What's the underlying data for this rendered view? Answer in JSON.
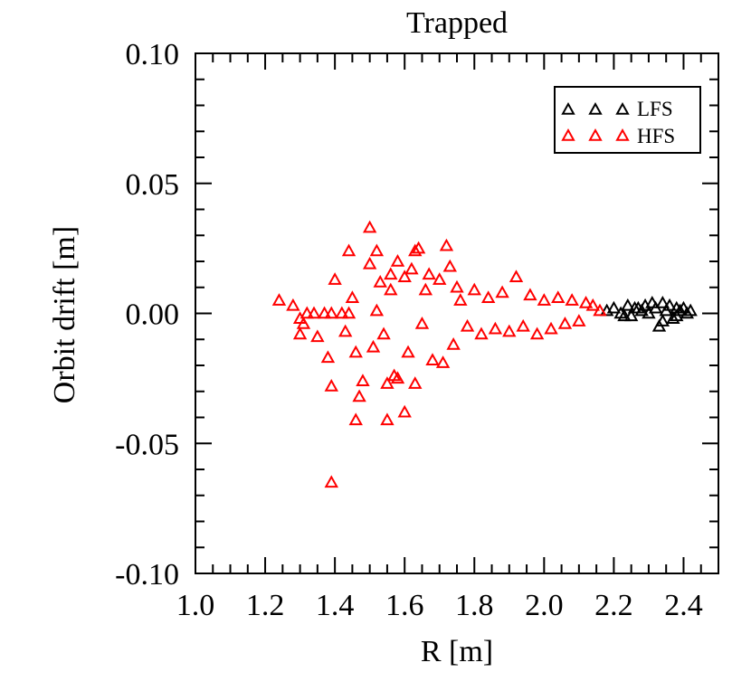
{
  "chart_data": {
    "type": "scatter",
    "title": "Trapped",
    "xlabel": "R [m]",
    "ylabel": "Orbit drift [m]",
    "xlim": [
      1.0,
      2.5
    ],
    "ylim": [
      -0.1,
      0.1
    ],
    "xticks": [
      "1.0",
      "1.2",
      "1.4",
      "1.6",
      "1.8",
      "2.0",
      "2.2",
      "2.4"
    ],
    "yticks": [
      "-0.10",
      "-0.05",
      "0.00",
      "0.05",
      "0.10"
    ],
    "grid": false,
    "legend_position": "top-right",
    "series": [
      {
        "name": "LFS",
        "color": "#000000",
        "marker": "triangle-open",
        "points": [
          [
            2.18,
            0.001
          ],
          [
            2.2,
            0.002
          ],
          [
            2.22,
            0.0
          ],
          [
            2.24,
            0.003
          ],
          [
            2.25,
            -0.001
          ],
          [
            2.26,
            0.002
          ],
          [
            2.28,
            0.001
          ],
          [
            2.29,
            0.003
          ],
          [
            2.3,
            0.0
          ],
          [
            2.31,
            0.004
          ],
          [
            2.32,
            0.002
          ],
          [
            2.33,
            -0.005
          ],
          [
            2.34,
            0.004
          ],
          [
            2.35,
            0.001
          ],
          [
            2.36,
            0.003
          ],
          [
            2.37,
            -0.002
          ],
          [
            2.38,
            0.002
          ],
          [
            2.39,
            0.001
          ],
          [
            2.4,
            0.002
          ],
          [
            2.41,
            0.0
          ],
          [
            2.42,
            0.001
          ],
          [
            2.23,
            -0.001
          ],
          [
            2.27,
            0.002
          ],
          [
            2.34,
            -0.003
          ],
          [
            2.38,
            -0.001
          ]
        ]
      },
      {
        "name": "HFS",
        "color": "#ff0000",
        "marker": "triangle-open",
        "points": [
          [
            1.24,
            0.005
          ],
          [
            1.28,
            0.003
          ],
          [
            1.3,
            -0.002
          ],
          [
            1.31,
            -0.004
          ],
          [
            1.3,
            -0.008
          ],
          [
            1.32,
            0.0
          ],
          [
            1.34,
            0.0
          ],
          [
            1.35,
            -0.009
          ],
          [
            1.37,
            0.0
          ],
          [
            1.39,
            0.0
          ],
          [
            1.38,
            -0.017
          ],
          [
            1.39,
            -0.028
          ],
          [
            1.4,
            0.013
          ],
          [
            1.42,
            0.0
          ],
          [
            1.44,
            0.0
          ],
          [
            1.43,
            -0.007
          ],
          [
            1.44,
            0.024
          ],
          [
            1.45,
            0.006
          ],
          [
            1.46,
            -0.015
          ],
          [
            1.47,
            -0.032
          ],
          [
            1.46,
            -0.041
          ],
          [
            1.48,
            -0.026
          ],
          [
            1.5,
            0.033
          ],
          [
            1.5,
            0.019
          ],
          [
            1.51,
            -0.013
          ],
          [
            1.52,
            0.024
          ],
          [
            1.52,
            0.001
          ],
          [
            1.53,
            0.012
          ],
          [
            1.54,
            -0.008
          ],
          [
            1.55,
            -0.027
          ],
          [
            1.55,
            -0.041
          ],
          [
            1.56,
            0.015
          ],
          [
            1.56,
            0.009
          ],
          [
            1.57,
            -0.024
          ],
          [
            1.58,
            0.02
          ],
          [
            1.58,
            -0.025
          ],
          [
            1.6,
            -0.038
          ],
          [
            1.6,
            0.014
          ],
          [
            1.61,
            -0.015
          ],
          [
            1.62,
            0.017
          ],
          [
            1.63,
            0.024
          ],
          [
            1.63,
            -0.027
          ],
          [
            1.64,
            0.025
          ],
          [
            1.65,
            -0.004
          ],
          [
            1.66,
            0.009
          ],
          [
            1.67,
            0.015
          ],
          [
            1.68,
            -0.018
          ],
          [
            1.7,
            0.013
          ],
          [
            1.71,
            -0.019
          ],
          [
            1.72,
            0.026
          ],
          [
            1.73,
            0.018
          ],
          [
            1.74,
            -0.012
          ],
          [
            1.75,
            0.01
          ],
          [
            1.76,
            0.005
          ],
          [
            1.78,
            -0.005
          ],
          [
            1.8,
            0.009
          ],
          [
            1.82,
            -0.008
          ],
          [
            1.84,
            0.006
          ],
          [
            1.86,
            -0.006
          ],
          [
            1.88,
            0.008
          ],
          [
            1.9,
            -0.007
          ],
          [
            1.92,
            0.014
          ],
          [
            1.94,
            -0.005
          ],
          [
            1.96,
            0.007
          ],
          [
            1.98,
            -0.008
          ],
          [
            2.0,
            0.005
          ],
          [
            2.02,
            -0.006
          ],
          [
            2.04,
            0.006
          ],
          [
            2.06,
            -0.004
          ],
          [
            2.08,
            0.005
          ],
          [
            2.1,
            -0.003
          ],
          [
            2.12,
            0.004
          ],
          [
            2.14,
            0.003
          ],
          [
            2.16,
            0.001
          ],
          [
            1.39,
            -0.065
          ]
        ]
      }
    ]
  }
}
